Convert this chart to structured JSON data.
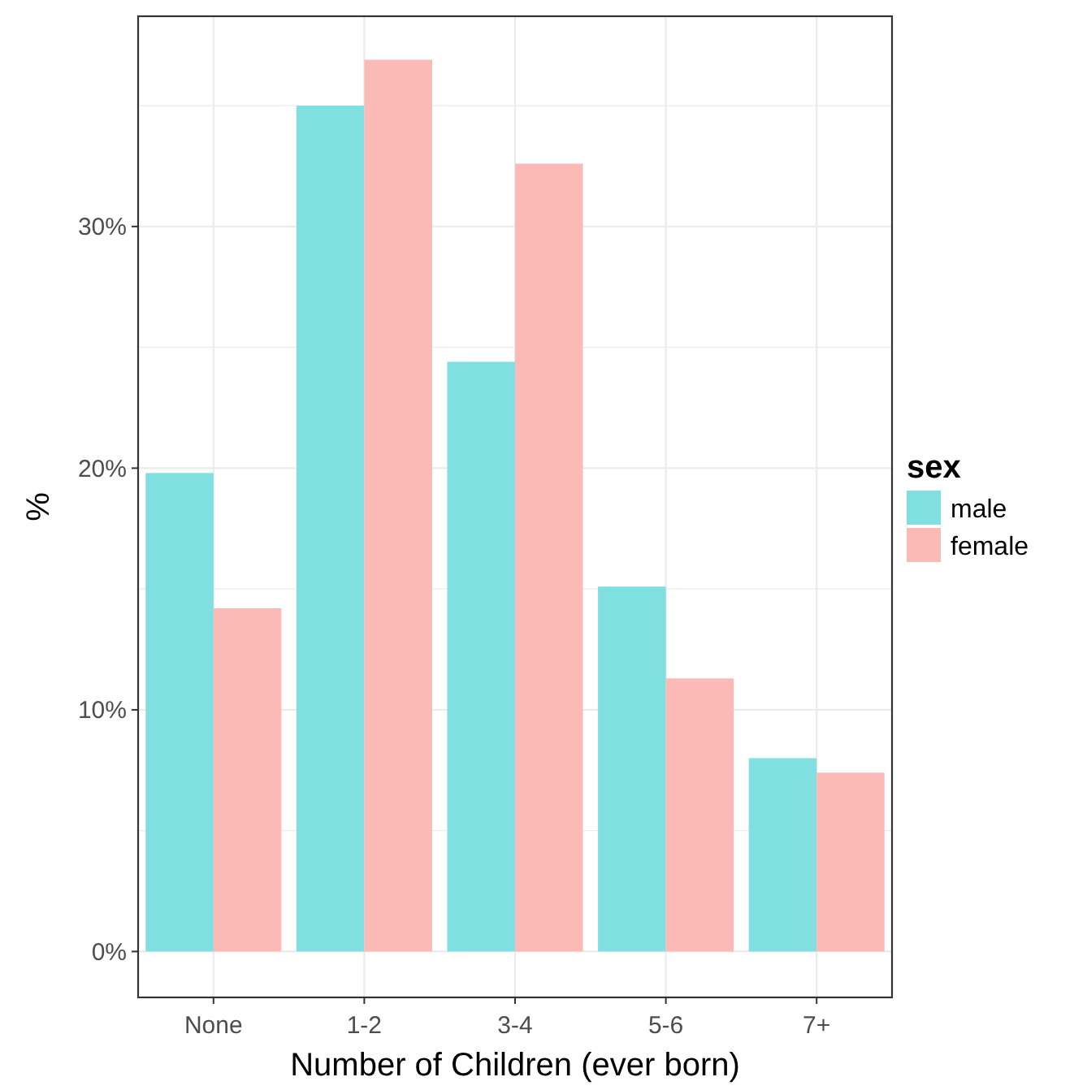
{
  "chart_data": {
    "type": "bar",
    "xlabel": "Number of Children (ever born)",
    "ylabel": "%",
    "legend_title": "sex",
    "categories": [
      "None",
      "1-2",
      "3-4",
      "5-6",
      "7+"
    ],
    "series": [
      {
        "name": "male",
        "color": "#7fdfe1",
        "values": [
          19.8,
          35.0,
          24.4,
          15.1,
          8.0
        ]
      },
      {
        "name": "female",
        "color": "#fbbab6",
        "values": [
          14.2,
          36.9,
          32.6,
          11.3,
          7.4
        ]
      }
    ],
    "ylim": [
      -1.9,
      38.7
    ],
    "yticks": [
      {
        "value": 0,
        "label": "0%"
      },
      {
        "value": 5,
        "label": null
      },
      {
        "value": 10,
        "label": "10%"
      },
      {
        "value": 15,
        "label": null
      },
      {
        "value": 20,
        "label": "20%"
      },
      {
        "value": 25,
        "label": null
      },
      {
        "value": 30,
        "label": "30%"
      },
      {
        "value": 35,
        "label": null
      }
    ],
    "grid": true,
    "legend": "right"
  }
}
